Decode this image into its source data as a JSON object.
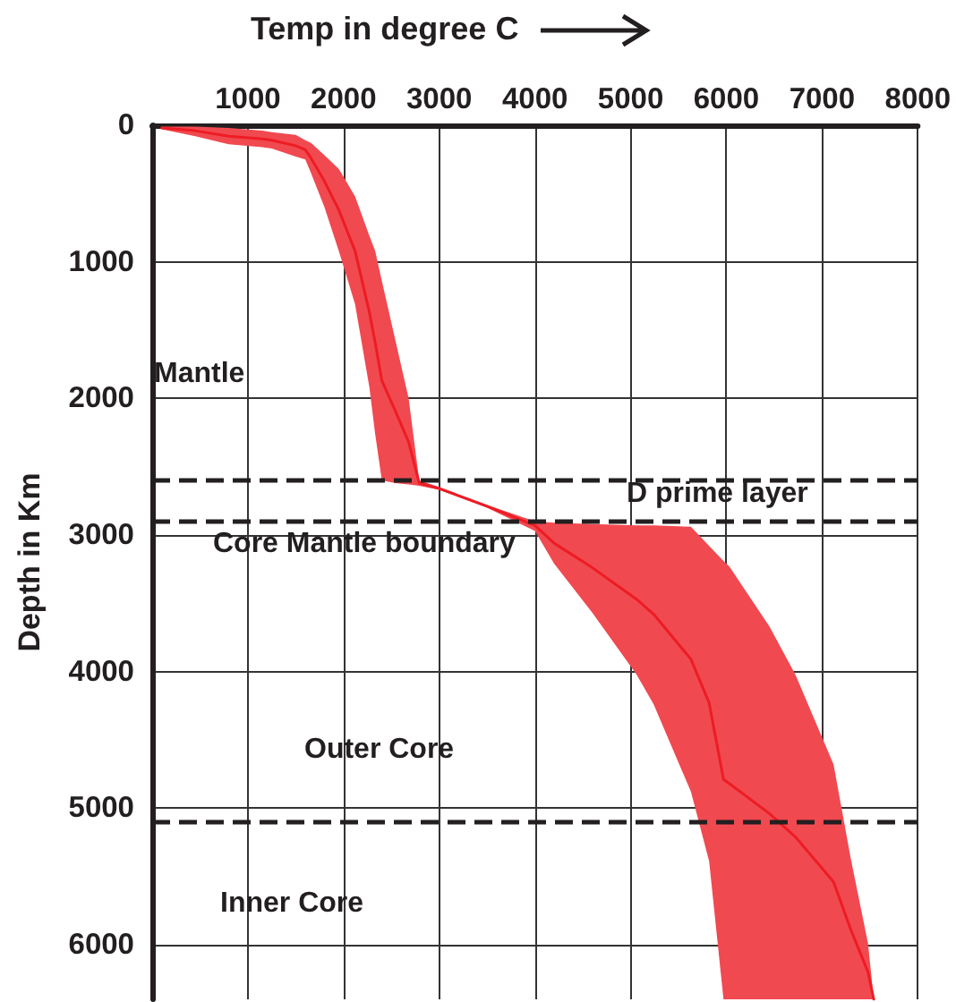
{
  "chart_data": {
    "type": "line",
    "xlabel": "Temp in degree C",
    "ylabel": "Depth in Km",
    "xlim": [
      0,
      8000
    ],
    "xticks": [
      {
        "value": 0,
        "label": null
      },
      1000,
      2000,
      3000,
      4000,
      5000,
      6000,
      7000,
      8000
    ],
    "ylim": [
      6400,
      0
    ],
    "yticks": [
      0,
      1000,
      2000,
      3000,
      4000,
      5000,
      6000
    ],
    "grid": true,
    "series": [
      {
        "color": "#ed1c24",
        "x": [
          100,
          450,
          800,
          1150,
          1250,
          1500,
          1600,
          1660,
          1800,
          1950,
          2120,
          2270,
          2330,
          2400,
          2540,
          2680,
          2790,
          3000,
          3500,
          4000,
          4200,
          4600,
          5060,
          5240,
          5630,
          5820,
          5970,
          6030,
          6450,
          6720,
          7120,
          7300,
          7480,
          7540
        ],
        "values": [
          20,
          40,
          80,
          100,
          110,
          150,
          180,
          240,
          410,
          620,
          920,
          1370,
          1590,
          1870,
          2090,
          2320,
          2620,
          2660,
          2790,
          2930,
          3060,
          3240,
          3470,
          3580,
          3910,
          4230,
          4790,
          4820,
          5040,
          5210,
          5540,
          5890,
          6200,
          6400
        ],
        "lower": [
          10,
          10,
          20,
          40,
          50,
          70,
          110,
          130,
          220,
          320,
          520,
          810,
          920,
          1140,
          1570,
          2000,
          2600,
          2650,
          2780,
          2900,
          2910,
          2920,
          2930,
          2930,
          2940,
          3080,
          3190,
          3230,
          3670,
          4020,
          4680,
          5370,
          5990,
          6400
        ],
        "upper": [
          30,
          80,
          140,
          160,
          170,
          230,
          250,
          350,
          600,
          920,
          1310,
          1920,
          2260,
          2600,
          2620,
          2630,
          2640,
          2670,
          2800,
          2970,
          3210,
          3570,
          4020,
          4240,
          4880,
          5390,
          6400,
          6400,
          6400,
          6400,
          6400,
          6400,
          6400,
          6400
        ]
      }
    ],
    "ref_lines": [
      {
        "axis": "y",
        "value": 2600,
        "line_style": "dashed",
        "color": "#231f20"
      },
      {
        "axis": "y",
        "value": 2900,
        "line_style": "dashed",
        "color": "#231f20"
      },
      {
        "axis": "y",
        "value": 5100,
        "line_style": "dashed",
        "color": "#231f20"
      }
    ],
    "annotations": [
      "Mantle",
      "D prime layer",
      "Core Mantle boundary",
      "Outer Core",
      "Inner Core"
    ]
  }
}
